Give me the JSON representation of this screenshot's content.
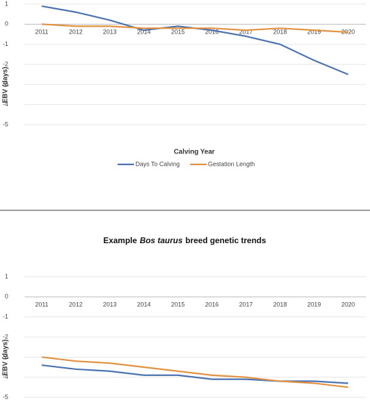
{
  "chart_data": [
    {
      "type": "line",
      "categories": [
        "2011",
        "2012",
        "2013",
        "2014",
        "2015",
        "2016",
        "2017",
        "2018",
        "2019",
        "2020"
      ],
      "series": [
        {
          "name": "Days To Calving",
          "color": "#4a72b0",
          "values": [
            0.9,
            0.6,
            0.2,
            -0.3,
            -0.1,
            -0.3,
            -0.6,
            -1.0,
            -1.8,
            -2.5
          ]
        },
        {
          "name": "Gestation Length",
          "color": "#e3913f",
          "values": [
            0,
            -0.1,
            -0.1,
            -0.2,
            -0.2,
            -0.2,
            -0.3,
            -0.2,
            -0.3,
            -0.4
          ]
        }
      ],
      "ylim": [
        -5,
        1
      ],
      "yticks": [
        1,
        0,
        -1,
        -2,
        -3,
        -4,
        -5
      ],
      "grid": true,
      "y_label": "EBV (days)",
      "x_label": "Calving Year",
      "legend": "bottom"
    },
    {
      "type": "line",
      "title": [
        "Example",
        "Bos taurus",
        "breed genetic trends"
      ],
      "categories": [
        "2011",
        "2012",
        "2013",
        "2014",
        "2015",
        "2016",
        "2017",
        "2018",
        "2019",
        "2020"
      ],
      "series": [
        {
          "name": "Days To Calving",
          "color": "#4a72b0",
          "values": [
            -3.4,
            -3.6,
            -3.7,
            -3.9,
            -3.9,
            -4.1,
            -4.1,
            -4.2,
            -4.2,
            -4.3
          ]
        },
        {
          "name": "Gestation Length",
          "color": "#e3913f",
          "values": [
            -3.0,
            -3.2,
            -3.3,
            -3.5,
            -3.7,
            -3.9,
            -4.0,
            -4.2,
            -4.3,
            -4.5
          ]
        }
      ],
      "ylim": [
        -5,
        1
      ],
      "yticks": [
        1,
        0,
        -1,
        -2,
        -3,
        -4,
        -5
      ],
      "grid": true,
      "y_label": "EBV (days)"
    }
  ]
}
